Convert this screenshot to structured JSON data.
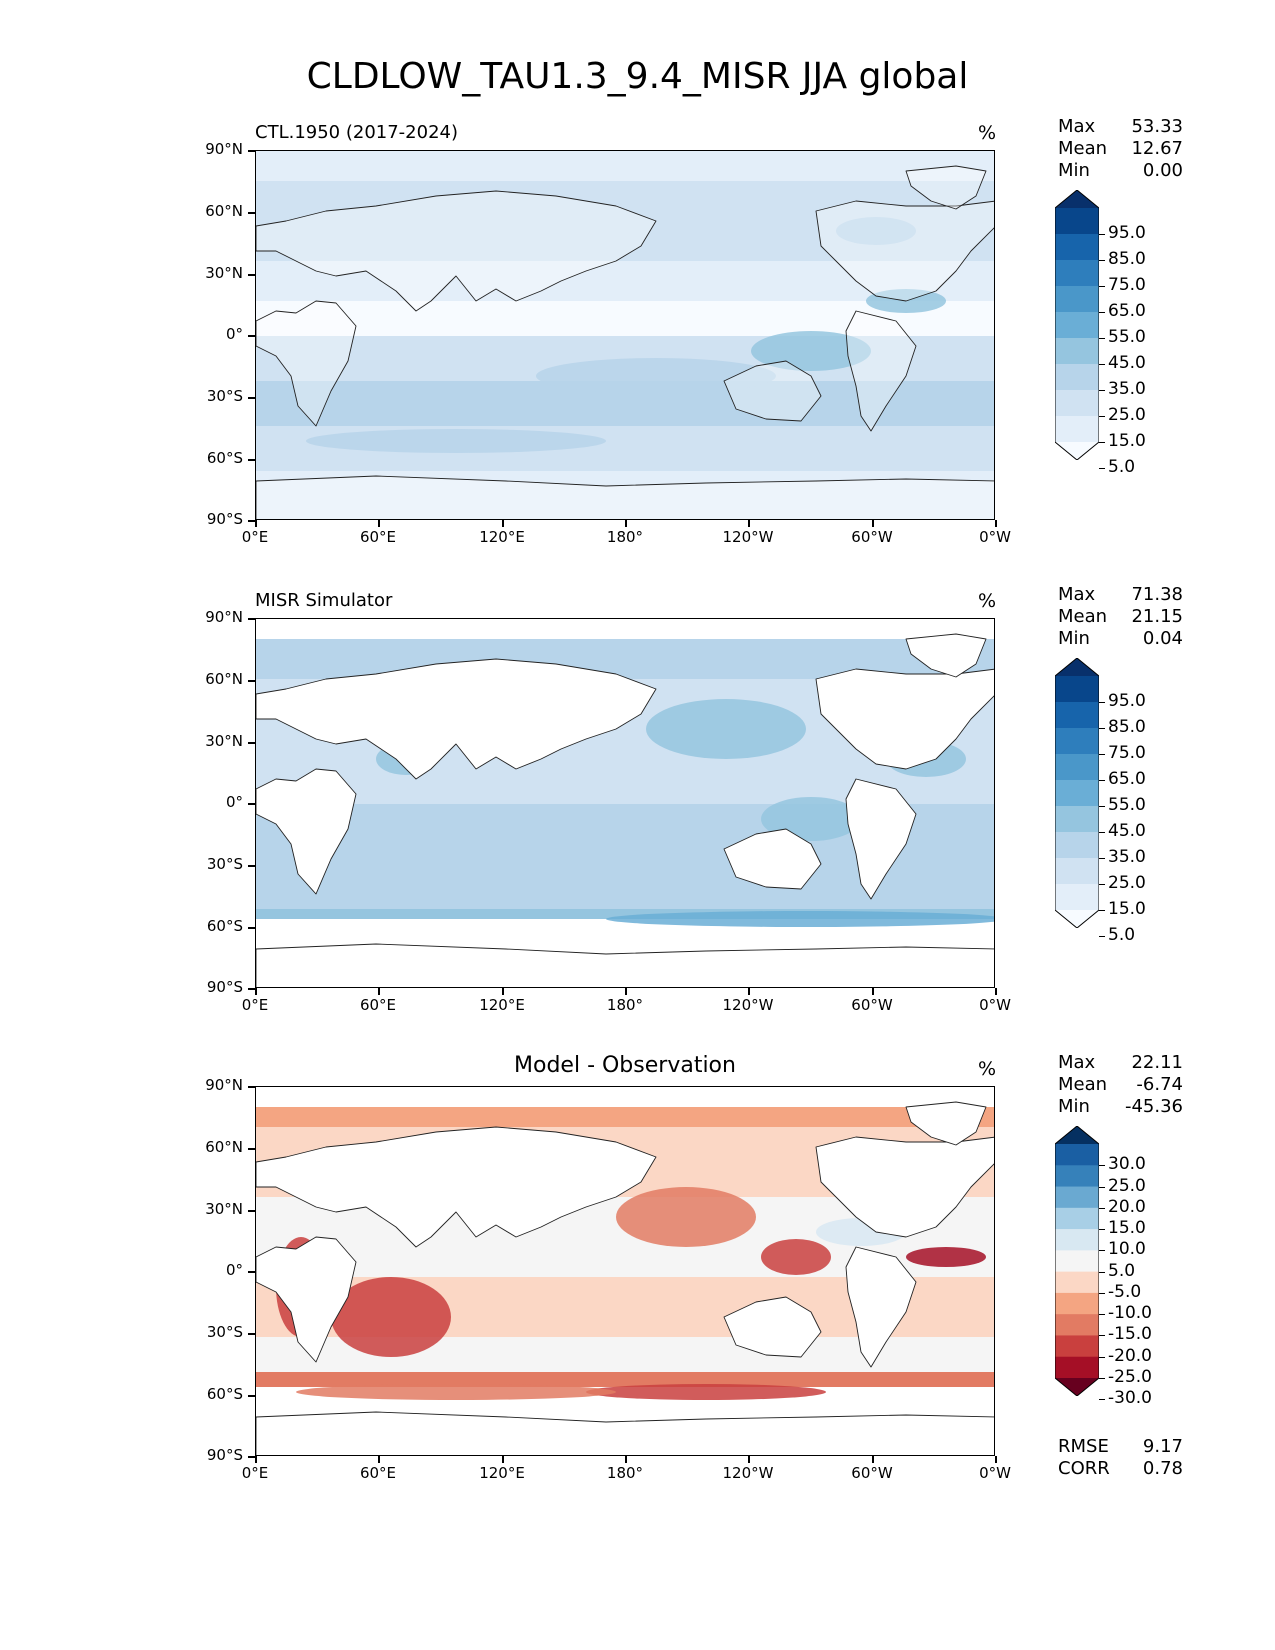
{
  "title": "CLDLOW_TAU1.3_9.4_MISR JJA global",
  "axes": {
    "lat_ticks": [
      "90°N",
      "60°N",
      "30°N",
      "0°",
      "30°S",
      "60°S",
      "90°S"
    ],
    "lon_ticks": [
      "0°E",
      "60°E",
      "120°E",
      "180°",
      "120°W",
      "60°W",
      "0°W"
    ]
  },
  "panels": [
    {
      "id": "test",
      "left_title": "CTL.1950 (2017-2024)",
      "center_title": "",
      "unit": "%",
      "stats": [
        {
          "label": "Max",
          "value": "53.33"
        },
        {
          "label": "Mean",
          "value": "12.67"
        },
        {
          "label": "Min",
          "value": "0.00"
        }
      ],
      "colorbar": {
        "ticks": [
          "95.0",
          "85.0",
          "75.0",
          "65.0",
          "55.0",
          "45.0",
          "35.0",
          "25.0",
          "15.0",
          "5.0"
        ],
        "colors": [
          "#f7fbff",
          "#e3eef9",
          "#d0e2f2",
          "#b7d4ea",
          "#95c5df",
          "#6aaed6",
          "#4a97c9",
          "#2e7ebc",
          "#1764ab",
          "#08468b",
          "#08306b"
        ]
      }
    },
    {
      "id": "reference",
      "left_title": "MISR Simulator",
      "center_title": "",
      "unit": "%",
      "stats": [
        {
          "label": "Max",
          "value": "71.38"
        },
        {
          "label": "Mean",
          "value": "21.15"
        },
        {
          "label": "Min",
          "value": "0.04"
        }
      ],
      "colorbar": {
        "ticks": [
          "95.0",
          "85.0",
          "75.0",
          "65.0",
          "55.0",
          "45.0",
          "35.0",
          "25.0",
          "15.0",
          "5.0"
        ],
        "colors": [
          "#f7fbff",
          "#e3eef9",
          "#d0e2f2",
          "#b7d4ea",
          "#95c5df",
          "#6aaed6",
          "#4a97c9",
          "#2e7ebc",
          "#1764ab",
          "#08468b",
          "#08306b"
        ]
      }
    },
    {
      "id": "difference",
      "left_title": "",
      "center_title": "Model - Observation",
      "unit": "%",
      "stats": [
        {
          "label": "Max",
          "value": "22.11"
        },
        {
          "label": "Mean",
          "value": "-6.74"
        },
        {
          "label": "Min",
          "value": "-45.36"
        }
      ],
      "metrics": [
        {
          "label": "RMSE",
          "value": "9.17"
        },
        {
          "label": "CORR",
          "value": "0.78"
        }
      ],
      "colorbar": {
        "ticks": [
          "30.0",
          "25.0",
          "20.0",
          "15.0",
          "10.0",
          "5.0",
          "-5.0",
          "-10.0",
          "-15.0",
          "-20.0",
          "-25.0",
          "-30.0"
        ],
        "colors": [
          "#67001f",
          "#a50f26",
          "#c9403e",
          "#e27b63",
          "#f4a582",
          "#fbd7c5",
          "#f5f5f5",
          "#d8e8f2",
          "#a8cfe6",
          "#6aa9d1",
          "#3681ba",
          "#1a5fa3",
          "#053061"
        ]
      }
    }
  ]
}
